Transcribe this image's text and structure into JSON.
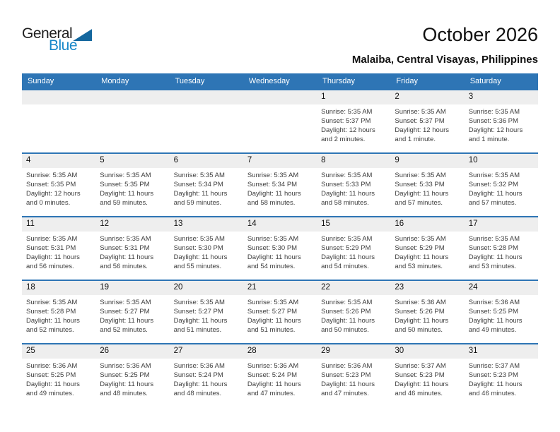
{
  "logo": {
    "general": "General",
    "blue": "Blue"
  },
  "header": {
    "title": "October 2026",
    "subtitle": "Malaiba, Central Visayas, Philippines"
  },
  "colors": {
    "header_blue": "#2e75b5",
    "week_divider_blue": "#2e75b5",
    "day_band_gray": "#eeeeee",
    "logo_text_blue": "#1887c9",
    "logo_triangle_blue": "#14679e"
  },
  "calendar": {
    "weekday_headers": [
      "Sunday",
      "Monday",
      "Tuesday",
      "Wednesday",
      "Thursday",
      "Friday",
      "Saturday"
    ],
    "weeks": [
      [
        null,
        null,
        null,
        null,
        {
          "day": "1",
          "sunrise": "Sunrise: 5:35 AM",
          "sunset": "Sunset: 5:37 PM",
          "daylight": "Daylight: 12 hours and 2 minutes."
        },
        {
          "day": "2",
          "sunrise": "Sunrise: 5:35 AM",
          "sunset": "Sunset: 5:37 PM",
          "daylight": "Daylight: 12 hours and 1 minute."
        },
        {
          "day": "3",
          "sunrise": "Sunrise: 5:35 AM",
          "sunset": "Sunset: 5:36 PM",
          "daylight": "Daylight: 12 hours and 1 minute."
        }
      ],
      [
        {
          "day": "4",
          "sunrise": "Sunrise: 5:35 AM",
          "sunset": "Sunset: 5:35 PM",
          "daylight": "Daylight: 12 hours and 0 minutes."
        },
        {
          "day": "5",
          "sunrise": "Sunrise: 5:35 AM",
          "sunset": "Sunset: 5:35 PM",
          "daylight": "Daylight: 11 hours and 59 minutes."
        },
        {
          "day": "6",
          "sunrise": "Sunrise: 5:35 AM",
          "sunset": "Sunset: 5:34 PM",
          "daylight": "Daylight: 11 hours and 59 minutes."
        },
        {
          "day": "7",
          "sunrise": "Sunrise: 5:35 AM",
          "sunset": "Sunset: 5:34 PM",
          "daylight": "Daylight: 11 hours and 58 minutes."
        },
        {
          "day": "8",
          "sunrise": "Sunrise: 5:35 AM",
          "sunset": "Sunset: 5:33 PM",
          "daylight": "Daylight: 11 hours and 58 minutes."
        },
        {
          "day": "9",
          "sunrise": "Sunrise: 5:35 AM",
          "sunset": "Sunset: 5:33 PM",
          "daylight": "Daylight: 11 hours and 57 minutes."
        },
        {
          "day": "10",
          "sunrise": "Sunrise: 5:35 AM",
          "sunset": "Sunset: 5:32 PM",
          "daylight": "Daylight: 11 hours and 57 minutes."
        }
      ],
      [
        {
          "day": "11",
          "sunrise": "Sunrise: 5:35 AM",
          "sunset": "Sunset: 5:31 PM",
          "daylight": "Daylight: 11 hours and 56 minutes."
        },
        {
          "day": "12",
          "sunrise": "Sunrise: 5:35 AM",
          "sunset": "Sunset: 5:31 PM",
          "daylight": "Daylight: 11 hours and 56 minutes."
        },
        {
          "day": "13",
          "sunrise": "Sunrise: 5:35 AM",
          "sunset": "Sunset: 5:30 PM",
          "daylight": "Daylight: 11 hours and 55 minutes."
        },
        {
          "day": "14",
          "sunrise": "Sunrise: 5:35 AM",
          "sunset": "Sunset: 5:30 PM",
          "daylight": "Daylight: 11 hours and 54 minutes."
        },
        {
          "day": "15",
          "sunrise": "Sunrise: 5:35 AM",
          "sunset": "Sunset: 5:29 PM",
          "daylight": "Daylight: 11 hours and 54 minutes."
        },
        {
          "day": "16",
          "sunrise": "Sunrise: 5:35 AM",
          "sunset": "Sunset: 5:29 PM",
          "daylight": "Daylight: 11 hours and 53 minutes."
        },
        {
          "day": "17",
          "sunrise": "Sunrise: 5:35 AM",
          "sunset": "Sunset: 5:28 PM",
          "daylight": "Daylight: 11 hours and 53 minutes."
        }
      ],
      [
        {
          "day": "18",
          "sunrise": "Sunrise: 5:35 AM",
          "sunset": "Sunset: 5:28 PM",
          "daylight": "Daylight: 11 hours and 52 minutes."
        },
        {
          "day": "19",
          "sunrise": "Sunrise: 5:35 AM",
          "sunset": "Sunset: 5:27 PM",
          "daylight": "Daylight: 11 hours and 52 minutes."
        },
        {
          "day": "20",
          "sunrise": "Sunrise: 5:35 AM",
          "sunset": "Sunset: 5:27 PM",
          "daylight": "Daylight: 11 hours and 51 minutes."
        },
        {
          "day": "21",
          "sunrise": "Sunrise: 5:35 AM",
          "sunset": "Sunset: 5:27 PM",
          "daylight": "Daylight: 11 hours and 51 minutes."
        },
        {
          "day": "22",
          "sunrise": "Sunrise: 5:35 AM",
          "sunset": "Sunset: 5:26 PM",
          "daylight": "Daylight: 11 hours and 50 minutes."
        },
        {
          "day": "23",
          "sunrise": "Sunrise: 5:36 AM",
          "sunset": "Sunset: 5:26 PM",
          "daylight": "Daylight: 11 hours and 50 minutes."
        },
        {
          "day": "24",
          "sunrise": "Sunrise: 5:36 AM",
          "sunset": "Sunset: 5:25 PM",
          "daylight": "Daylight: 11 hours and 49 minutes."
        }
      ],
      [
        {
          "day": "25",
          "sunrise": "Sunrise: 5:36 AM",
          "sunset": "Sunset: 5:25 PM",
          "daylight": "Daylight: 11 hours and 49 minutes."
        },
        {
          "day": "26",
          "sunrise": "Sunrise: 5:36 AM",
          "sunset": "Sunset: 5:25 PM",
          "daylight": "Daylight: 11 hours and 48 minutes."
        },
        {
          "day": "27",
          "sunrise": "Sunrise: 5:36 AM",
          "sunset": "Sunset: 5:24 PM",
          "daylight": "Daylight: 11 hours and 48 minutes."
        },
        {
          "day": "28",
          "sunrise": "Sunrise: 5:36 AM",
          "sunset": "Sunset: 5:24 PM",
          "daylight": "Daylight: 11 hours and 47 minutes."
        },
        {
          "day": "29",
          "sunrise": "Sunrise: 5:36 AM",
          "sunset": "Sunset: 5:23 PM",
          "daylight": "Daylight: 11 hours and 47 minutes."
        },
        {
          "day": "30",
          "sunrise": "Sunrise: 5:37 AM",
          "sunset": "Sunset: 5:23 PM",
          "daylight": "Daylight: 11 hours and 46 minutes."
        },
        {
          "day": "31",
          "sunrise": "Sunrise: 5:37 AM",
          "sunset": "Sunset: 5:23 PM",
          "daylight": "Daylight: 11 hours and 46 minutes."
        }
      ]
    ]
  }
}
